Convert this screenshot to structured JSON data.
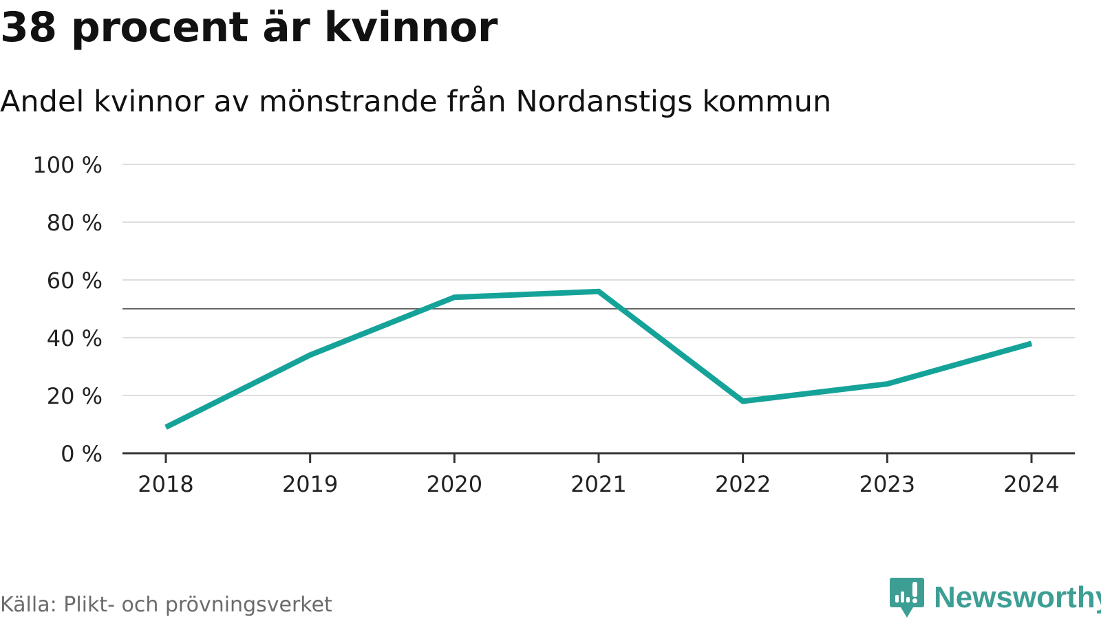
{
  "header": {
    "title": "38 procent är kvinnor",
    "subtitle": "Andel kvinnor av mönstrande från Nordanstigs kommun"
  },
  "footer": {
    "source": "Källa: Plikt- och prövningsverket",
    "brand": "Newsworthy",
    "brand_icon": "newsworthy-logo-icon"
  },
  "colors": {
    "line": "#15a399",
    "grid": "#dddddd",
    "reference": "#666666",
    "axis": "#333333",
    "brand": "#3d9e94"
  },
  "chart_data": {
    "type": "line",
    "title": "38 procent är kvinnor",
    "subtitle": "Andel kvinnor av mönstrande från Nordanstigs kommun",
    "xlabel": "",
    "ylabel": "",
    "categories": [
      "2018",
      "2019",
      "2020",
      "2021",
      "2022",
      "2023",
      "2024"
    ],
    "series": [
      {
        "name": "Andel kvinnor",
        "values": [
          9,
          34,
          54,
          56,
          18,
          24,
          38
        ]
      }
    ],
    "ylim": [
      0,
      100
    ],
    "yticks": [
      0,
      20,
      40,
      60,
      80,
      100
    ],
    "ytick_labels": [
      "0 %",
      "20 %",
      "40 %",
      "60 %",
      "80 %",
      "100 %"
    ],
    "reference_line": 50,
    "grid": true,
    "legend": "none"
  }
}
